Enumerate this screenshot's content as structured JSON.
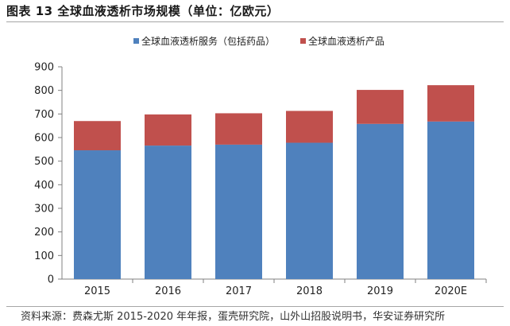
{
  "title": "图表 13 全球血液透析市场规模（单位：亿欧元）",
  "source": "资料来源：费森尤斯 2015-2020 年年报，蛋壳研究院，山外山招股说明书，华安证券研究所",
  "chart_data": {
    "type": "bar",
    "stacked": true,
    "categories": [
      "2015",
      "2016",
      "2017",
      "2018",
      "2019",
      "2020E"
    ],
    "series": [
      {
        "name": "全球血液透析服务（包括药品）",
        "color": "#4f81bd",
        "values": [
          546,
          566,
          570,
          578,
          658,
          668
        ]
      },
      {
        "name": "全球血液透析产品",
        "color": "#c0504d",
        "values": [
          124,
          132,
          133,
          135,
          144,
          154
        ]
      }
    ],
    "ylim": [
      0,
      900
    ],
    "yticks": [
      0,
      100,
      200,
      300,
      400,
      500,
      600,
      700,
      800,
      900
    ],
    "grid": false,
    "legend_position": "top"
  }
}
